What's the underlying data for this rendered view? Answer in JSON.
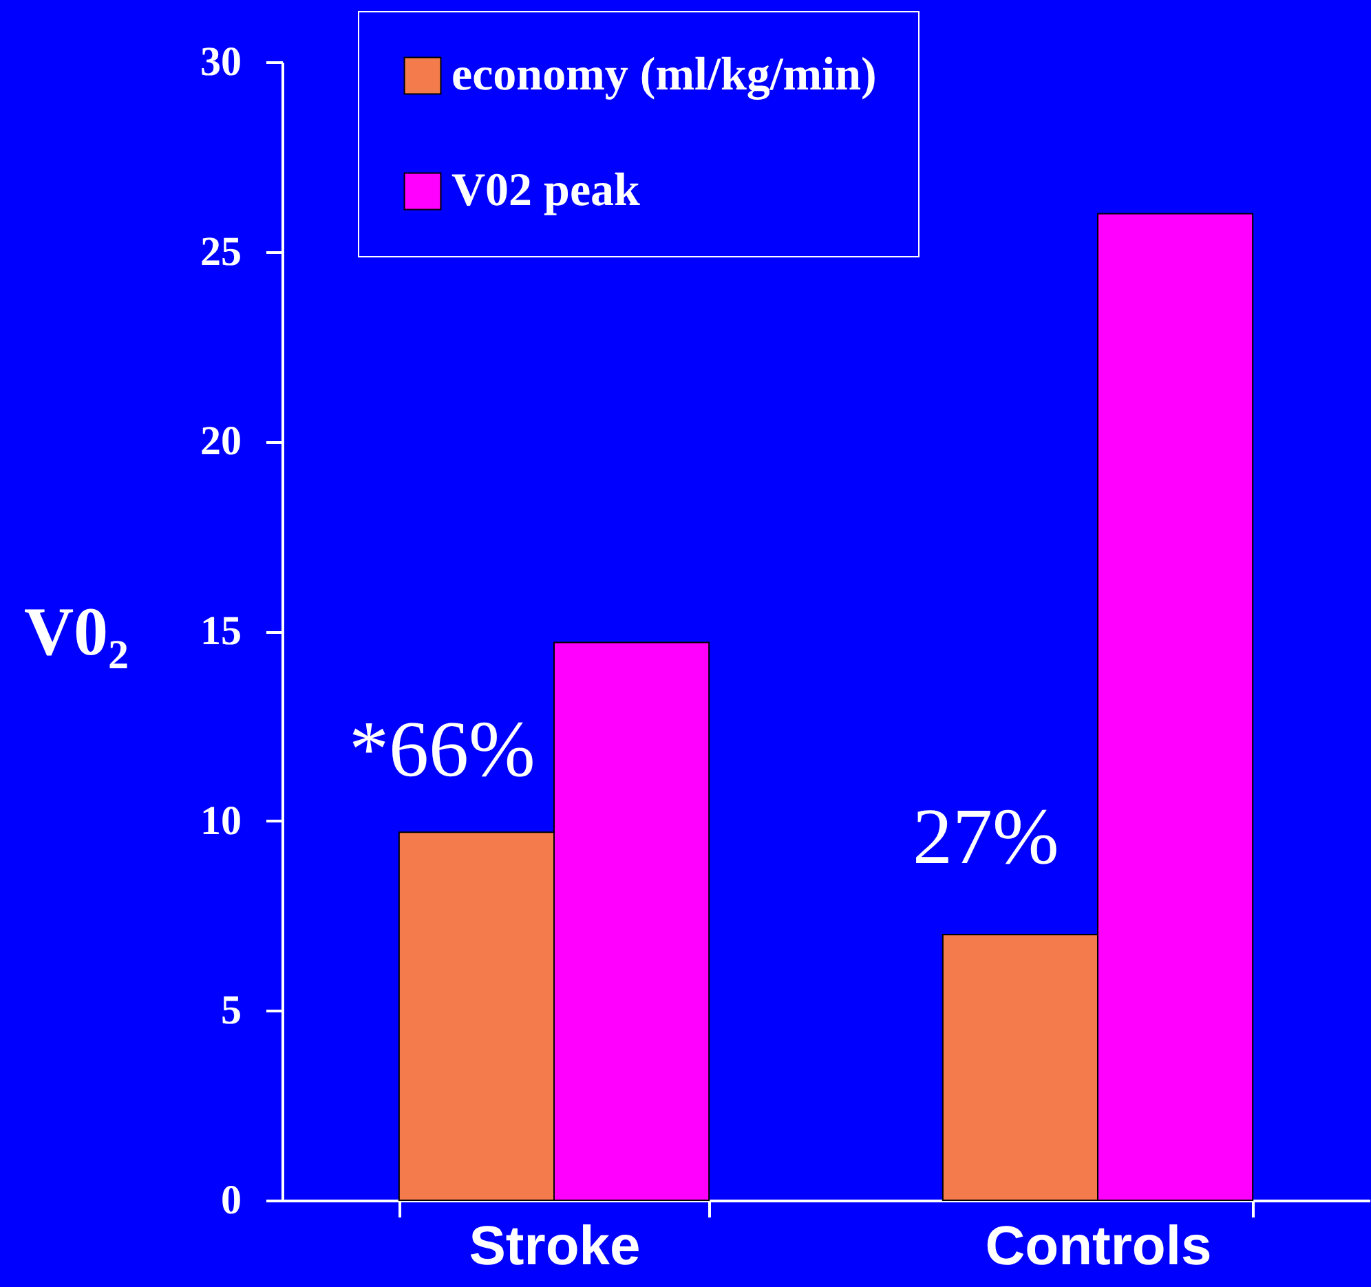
{
  "chart_data": {
    "type": "bar",
    "categories": [
      "Stroke",
      "Controls"
    ],
    "ylabel": "V0₂",
    "series": [
      {
        "name": "economy (ml/kg/min)",
        "color": "#f47c4c",
        "values": [
          9.7,
          7.0
        ]
      },
      {
        "name": "V02 peak",
        "color": "#ff00ff",
        "values": [
          14.7,
          26
        ]
      }
    ],
    "ylim": [
      0,
      30
    ],
    "yticks": [
      0,
      5,
      10,
      15,
      20,
      25,
      30
    ],
    "grid": false,
    "legend": "top left",
    "annotations": [
      {
        "text": "*66%",
        "x": "Stroke",
        "y": 11.8
      },
      {
        "text": "27%",
        "x": "Controls",
        "y": 9.5
      }
    ]
  }
}
